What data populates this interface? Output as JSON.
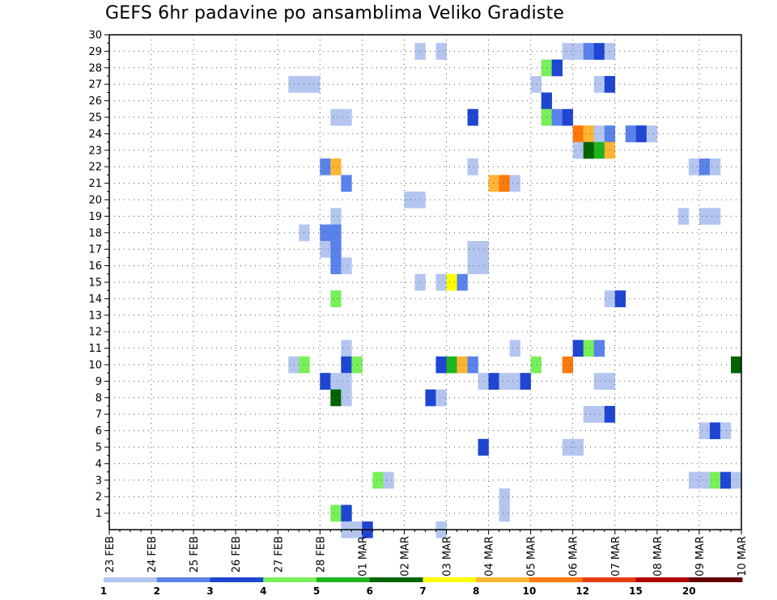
{
  "chart_data": {
    "type": "heatmap",
    "title": "GEFS 6hr padavine po ansamblima Veliko Gradiste",
    "xlabel": "",
    "ylabel": "",
    "x_tick_labels": [
      "23 FEB",
      "24 FEB",
      "25 FEB",
      "26 FEB",
      "27 FEB",
      "28 FEB",
      "01 MAR",
      "02 MAR",
      "03 MAR",
      "04 MAR",
      "05 MAR",
      "06 MAR",
      "07 MAR",
      "08 MAR",
      "09 MAR",
      "10 MAR"
    ],
    "y_tick_labels": [
      "1",
      "2",
      "3",
      "4",
      "5",
      "6",
      "7",
      "8",
      "9",
      "10",
      "11",
      "12",
      "13",
      "14",
      "15",
      "16",
      "17",
      "18",
      "19",
      "20",
      "21",
      "22",
      "23",
      "24",
      "25",
      "26",
      "27",
      "28",
      "29",
      "30"
    ],
    "y_range": [
      0,
      30
    ],
    "x_steps_per_day": 4,
    "total_steps": 60,
    "grid": "dotted",
    "legend": {
      "placement": "bottom",
      "labels": [
        "1",
        "2",
        "3",
        "4",
        "5",
        "6",
        "7",
        "8",
        "10",
        "12",
        "15",
        "20"
      ],
      "colors": [
        "#b4c6f0",
        "#5a82eb",
        "#1e46d2",
        "#78f05a",
        "#1eb41e",
        "#006400",
        "#ffff00",
        "#ffb432",
        "#ff780a",
        "#e63c0a",
        "#b40000",
        "#640000"
      ]
    },
    "colors": {
      "1": "#b4c6f0",
      "2": "#5a82eb",
      "3": "#1e46d2",
      "4": "#78f05a",
      "5": "#1eb41e",
      "6": "#006400",
      "7": "#ffff00",
      "8": "#ffb432",
      "10": "#ff780a",
      "12": "#e63c0a"
    },
    "cells": [
      {
        "member": 29,
        "step": 29,
        "c": 1
      },
      {
        "member": 29,
        "step": 31,
        "c": 1
      },
      {
        "member": 29,
        "step": 43,
        "c": 1
      },
      {
        "member": 29,
        "step": 44,
        "c": 1
      },
      {
        "member": 29,
        "step": 45,
        "c": 2
      },
      {
        "member": 29,
        "step": 46,
        "c": 3
      },
      {
        "member": 29,
        "step": 47,
        "c": 1
      },
      {
        "member": 28,
        "step": 41,
        "c": 4
      },
      {
        "member": 28,
        "step": 42,
        "c": 3
      },
      {
        "member": 27,
        "step": 17,
        "c": 1
      },
      {
        "member": 27,
        "step": 18,
        "c": 1
      },
      {
        "member": 27,
        "step": 19,
        "c": 1
      },
      {
        "member": 27,
        "step": 40,
        "c": 1
      },
      {
        "member": 27,
        "step": 46,
        "c": 1
      },
      {
        "member": 27,
        "step": 47,
        "c": 3
      },
      {
        "member": 26,
        "step": 41,
        "c": 3
      },
      {
        "member": 25,
        "step": 21,
        "c": 1
      },
      {
        "member": 25,
        "step": 22,
        "c": 1
      },
      {
        "member": 25,
        "step": 34,
        "c": 3
      },
      {
        "member": 25,
        "step": 41,
        "c": 4
      },
      {
        "member": 25,
        "step": 42,
        "c": 2
      },
      {
        "member": 25,
        "step": 43,
        "c": 3
      },
      {
        "member": 24,
        "step": 44,
        "c": 10
      },
      {
        "member": 24,
        "step": 45,
        "c": 8
      },
      {
        "member": 24,
        "step": 46,
        "c": 1
      },
      {
        "member": 24,
        "step": 47,
        "c": 2
      },
      {
        "member": 24,
        "step": 49,
        "c": 2
      },
      {
        "member": 24,
        "step": 50,
        "c": 3
      },
      {
        "member": 24,
        "step": 51,
        "c": 1
      },
      {
        "member": 23,
        "step": 44,
        "c": 1
      },
      {
        "member": 23,
        "step": 45,
        "c": 6
      },
      {
        "member": 23,
        "step": 46,
        "c": 5
      },
      {
        "member": 23,
        "step": 47,
        "c": 8
      },
      {
        "member": 22,
        "step": 20,
        "c": 2
      },
      {
        "member": 22,
        "step": 21,
        "c": 8
      },
      {
        "member": 22,
        "step": 34,
        "c": 1
      },
      {
        "member": 22,
        "step": 55,
        "c": 1
      },
      {
        "member": 22,
        "step": 56,
        "c": 2
      },
      {
        "member": 22,
        "step": 57,
        "c": 1
      },
      {
        "member": 21,
        "step": 22,
        "c": 2
      },
      {
        "member": 21,
        "step": 36,
        "c": 8
      },
      {
        "member": 21,
        "step": 37,
        "c": 10
      },
      {
        "member": 21,
        "step": 38,
        "c": 1
      },
      {
        "member": 20,
        "step": 28,
        "c": 1
      },
      {
        "member": 20,
        "step": 29,
        "c": 1
      },
      {
        "member": 19,
        "step": 21,
        "c": 1
      },
      {
        "member": 19,
        "step": 54,
        "c": 1
      },
      {
        "member": 19,
        "step": 56,
        "c": 1
      },
      {
        "member": 19,
        "step": 57,
        "c": 1
      },
      {
        "member": 18,
        "step": 18,
        "c": 1
      },
      {
        "member": 18,
        "step": 20,
        "c": 2
      },
      {
        "member": 18,
        "step": 21,
        "c": 2
      },
      {
        "member": 17,
        "step": 20,
        "c": 1
      },
      {
        "member": 17,
        "step": 21,
        "c": 2
      },
      {
        "member": 17,
        "step": 34,
        "c": 1
      },
      {
        "member": 17,
        "step": 35,
        "c": 1
      },
      {
        "member": 16,
        "step": 21,
        "c": 2
      },
      {
        "member": 16,
        "step": 22,
        "c": 1
      },
      {
        "member": 16,
        "step": 34,
        "c": 1
      },
      {
        "member": 16,
        "step": 35,
        "c": 1
      },
      {
        "member": 15,
        "step": 29,
        "c": 1
      },
      {
        "member": 15,
        "step": 31,
        "c": 1
      },
      {
        "member": 15,
        "step": 32,
        "c": 7
      },
      {
        "member": 15,
        "step": 33,
        "c": 2
      },
      {
        "member": 14,
        "step": 21,
        "c": 4
      },
      {
        "member": 14,
        "step": 47,
        "c": 1
      },
      {
        "member": 14,
        "step": 48,
        "c": 3
      },
      {
        "member": 11,
        "step": 22,
        "c": 1
      },
      {
        "member": 11,
        "step": 38,
        "c": 1
      },
      {
        "member": 11,
        "step": 44,
        "c": 3
      },
      {
        "member": 11,
        "step": 45,
        "c": 4
      },
      {
        "member": 11,
        "step": 46,
        "c": 2
      },
      {
        "member": 10,
        "step": 17,
        "c": 1
      },
      {
        "member": 10,
        "step": 18,
        "c": 4
      },
      {
        "member": 10,
        "step": 22,
        "c": 3
      },
      {
        "member": 10,
        "step": 23,
        "c": 4
      },
      {
        "member": 10,
        "step": 31,
        "c": 3
      },
      {
        "member": 10,
        "step": 32,
        "c": 5
      },
      {
        "member": 10,
        "step": 33,
        "c": 8
      },
      {
        "member": 10,
        "step": 34,
        "c": 2
      },
      {
        "member": 10,
        "step": 40,
        "c": 4
      },
      {
        "member": 10,
        "step": 43,
        "c": 10
      },
      {
        "member": 10,
        "step": 59,
        "c": 6
      },
      {
        "member": 9,
        "step": 20,
        "c": 3
      },
      {
        "member": 9,
        "step": 21,
        "c": 1
      },
      {
        "member": 9,
        "step": 22,
        "c": 1
      },
      {
        "member": 9,
        "step": 35,
        "c": 1
      },
      {
        "member": 9,
        "step": 36,
        "c": 3
      },
      {
        "member": 9,
        "step": 37,
        "c": 1
      },
      {
        "member": 9,
        "step": 38,
        "c": 1
      },
      {
        "member": 9,
        "step": 39,
        "c": 3
      },
      {
        "member": 9,
        "step": 46,
        "c": 1
      },
      {
        "member": 9,
        "step": 47,
        "c": 1
      },
      {
        "member": 8,
        "step": 21,
        "c": 6
      },
      {
        "member": 8,
        "step": 22,
        "c": 1
      },
      {
        "member": 8,
        "step": 30,
        "c": 3
      },
      {
        "member": 8,
        "step": 31,
        "c": 1
      },
      {
        "member": 7,
        "step": 45,
        "c": 1
      },
      {
        "member": 7,
        "step": 46,
        "c": 1
      },
      {
        "member": 7,
        "step": 47,
        "c": 3
      },
      {
        "member": 6,
        "step": 56,
        "c": 1
      },
      {
        "member": 6,
        "step": 57,
        "c": 3
      },
      {
        "member": 6,
        "step": 58,
        "c": 1
      },
      {
        "member": 5,
        "step": 35,
        "c": 3
      },
      {
        "member": 5,
        "step": 43,
        "c": 1
      },
      {
        "member": 5,
        "step": 44,
        "c": 1
      },
      {
        "member": 3,
        "step": 25,
        "c": 4
      },
      {
        "member": 3,
        "step": 26,
        "c": 1
      },
      {
        "member": 3,
        "step": 55,
        "c": 1
      },
      {
        "member": 3,
        "step": 56,
        "c": 1
      },
      {
        "member": 3,
        "step": 57,
        "c": 4
      },
      {
        "member": 3,
        "step": 58,
        "c": 3
      },
      {
        "member": 3,
        "step": 59,
        "c": 1
      },
      {
        "member": 2,
        "step": 37,
        "c": 1
      },
      {
        "member": 1,
        "step": 21,
        "c": 4
      },
      {
        "member": 1,
        "step": 22,
        "c": 3
      },
      {
        "member": 1,
        "step": 37,
        "c": 1
      },
      {
        "member": 0,
        "step": 22,
        "c": 1
      },
      {
        "member": 0,
        "step": 23,
        "c": 1
      },
      {
        "member": 0,
        "step": 24,
        "c": 3
      },
      {
        "member": 0,
        "step": 31,
        "c": 1
      }
    ]
  }
}
